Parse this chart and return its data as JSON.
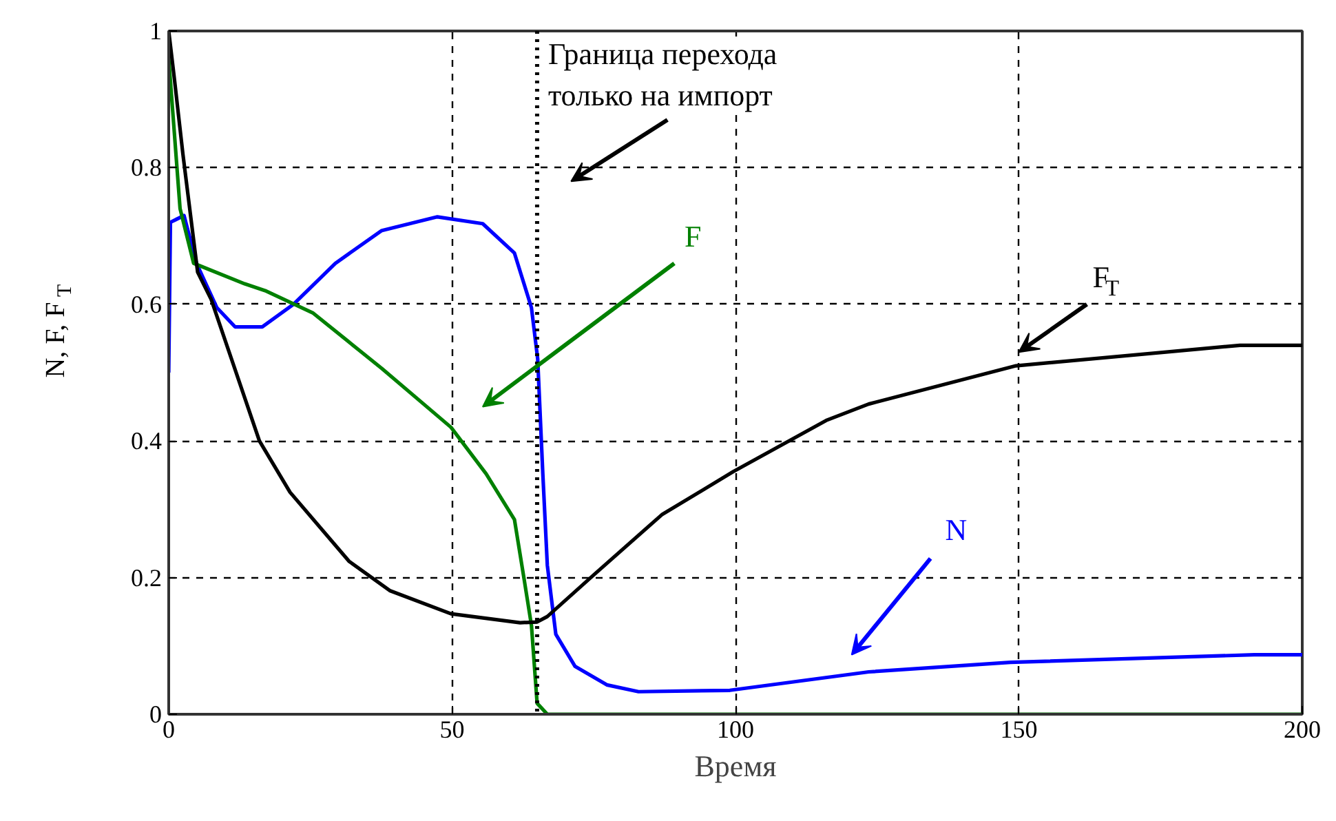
{
  "chart_data": {
    "type": "line",
    "xlabel": "Время",
    "ylabel": "N, F, F$_{T}$",
    "xlim": [
      0,
      200
    ],
    "ylim": [
      0,
      1
    ],
    "xticks": [
      0,
      50,
      100,
      150,
      200
    ],
    "yticks": [
      0,
      {
        "value": 0.2,
        "label": "0.2"
      },
      {
        "value": 0.4,
        "label": "0.4"
      },
      {
        "value": 0.6,
        "label": "0.6"
      },
      {
        "value": 0.8,
        "label": "0.8"
      },
      1
    ],
    "grid": true,
    "line_style": "solid",
    "ref_lines": [
      {
        "axis": "x",
        "value": 65,
        "label": "Граница перехода\nтолько на импорт",
        "color": "#000000",
        "line_style": "dotted"
      }
    ],
    "series": [
      {
        "name": "N",
        "color": "#0000ff",
        "x": [
          0,
          0.3,
          2.7,
          4.9,
          8.5,
          11.7,
          16.5,
          22,
          29.4,
          37.6,
          47.4,
          55.4,
          61,
          64,
          65.1,
          66,
          66.8,
          68.3,
          71.7,
          77.3,
          82.9,
          99,
          123.5,
          148.5,
          191.5,
          200
        ],
        "values": [
          0.5,
          0.72,
          0.73,
          0.66,
          0.595,
          0.567,
          0.567,
          0.6,
          0.66,
          0.708,
          0.728,
          0.718,
          0.675,
          0.595,
          0.52,
          0.353,
          0.218,
          0.117,
          0.07,
          0.043,
          0.033,
          0.035,
          0.062,
          0.076,
          0.087,
          0.087
        ]
      },
      {
        "name": "F",
        "color": "#008000",
        "x": [
          0,
          2,
          4.4,
          13.4,
          17,
          25.5,
          37.6,
          49.8,
          56,
          61,
          62.7,
          64,
          65,
          66.8,
          200
        ],
        "values": [
          0.96,
          0.74,
          0.66,
          0.63,
          0.62,
          0.587,
          0.506,
          0.42,
          0.352,
          0.285,
          0.198,
          0.13,
          0.016,
          0,
          0
        ]
      },
      {
        "name": "F$_{T}$",
        "color": "#000000",
        "x": [
          0,
          1,
          2.5,
          5.1,
          7.5,
          16,
          21.4,
          31.8,
          39,
          49.8,
          62,
          65,
          66.8,
          75,
          87,
          99.6,
          116,
          123.5,
          149.5,
          189,
          200
        ],
        "values": [
          1,
          0.93,
          0.82,
          0.647,
          0.607,
          0.4,
          0.325,
          0.224,
          0.181,
          0.147,
          0.134,
          0.135,
          0.143,
          0.204,
          0.292,
          0.355,
          0.43,
          0.454,
          0.51,
          0.54,
          0.54
        ]
      }
    ]
  }
}
